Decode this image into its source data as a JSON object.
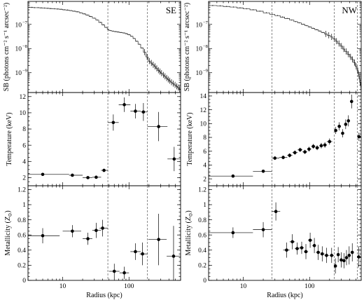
{
  "panels": [
    {
      "id": "SE",
      "label": "SE",
      "ticklabels": {
        "x": [
          "10",
          "100"
        ],
        "sb": [
          "10",
          "10",
          "10"
        ],
        "sb_exp": [
          "−7",
          "−8",
          "−9"
        ],
        "temp": [
          "2",
          "4",
          "6",
          "8",
          "10",
          "12"
        ],
        "metal": [
          "0",
          "0.2",
          "0.4",
          "0.6",
          "0.8",
          "1",
          "1.2"
        ]
      },
      "vlines": [
        48,
        190
      ],
      "sb_profile": [
        [
          3.0,
          5e-07
        ],
        [
          3.3,
          5e-07
        ],
        [
          3.6,
          4.9e-07
        ],
        [
          4.0,
          4.9e-07
        ],
        [
          4.5,
          4.8e-07
        ],
        [
          5.0,
          4.7e-07
        ],
        [
          5.6,
          4.6e-07
        ],
        [
          6.3,
          4.5e-07
        ],
        [
          7.0,
          4.4e-07
        ],
        [
          7.9,
          4.3e-07
        ],
        [
          8.9,
          4.2e-07
        ],
        [
          10,
          4e-07
        ],
        [
          11.2,
          3.9e-07
        ],
        [
          12.6,
          3.7e-07
        ],
        [
          14.1,
          3.5e-07
        ],
        [
          15.8,
          3.3e-07
        ],
        [
          17.8,
          3e-07
        ],
        [
          20,
          2.7e-07
        ],
        [
          22.4,
          2.4e-07
        ],
        [
          25,
          2.1e-07
        ],
        [
          28,
          1.8e-07
        ],
        [
          31.6,
          1.5e-07
        ],
        [
          35,
          1.2e-07
        ],
        [
          39,
          9.5e-08
        ],
        [
          43,
          7.5e-08
        ],
        [
          47,
          6.2e-08
        ],
        [
          50,
          5.5e-08
        ],
        [
          55,
          5.2e-08
        ],
        [
          60,
          5e-08
        ],
        [
          66,
          4.8e-08
        ],
        [
          72,
          4.6e-08
        ],
        [
          80,
          4.4e-08
        ],
        [
          88,
          4.1e-08
        ],
        [
          96,
          3.7e-08
        ],
        [
          105,
          3.2e-08
        ],
        [
          115,
          2.6e-08
        ],
        [
          125,
          2e-08
        ],
        [
          137,
          1.5e-08
        ],
        [
          150,
          1.05e-08
        ],
        [
          165,
          7e-09
        ],
        [
          180,
          4.5e-09
        ],
        [
          195,
          3e-09
        ],
        [
          210,
          2.5e-09
        ],
        [
          225,
          2.1e-09
        ],
        [
          240,
          1.8e-09
        ],
        [
          255,
          1.5e-09
        ],
        [
          270,
          1.25e-09
        ],
        [
          285,
          1.1e-09
        ],
        [
          300,
          9.5e-10
        ],
        [
          320,
          8e-10
        ],
        [
          340,
          7e-10
        ],
        [
          360,
          6e-10
        ],
        [
          380,
          5.2e-10
        ],
        [
          400,
          4.6e-10
        ],
        [
          425,
          4e-10
        ],
        [
          450,
          3.5e-10
        ],
        [
          480,
          3.1e-10
        ],
        [
          510,
          2.7e-10
        ],
        [
          540,
          2.4e-10
        ],
        [
          570,
          2.1e-10
        ]
      ],
      "temperature": [
        {
          "r": 5,
          "xlo": 3.0,
          "xhi": 12.5,
          "t": 2.4,
          "terr": 0.15
        },
        {
          "r": 14,
          "xlo": 12.5,
          "xhi": 20,
          "t": 2.3,
          "terr": 0.15
        },
        {
          "r": 24,
          "xlo": 20,
          "xhi": 28,
          "t": 2.0,
          "terr": 0.15
        },
        {
          "r": 32,
          "xlo": 28,
          "xhi": 38,
          "t": 2.05,
          "terr": 0.15
        },
        {
          "r": 42,
          "xlo": 38,
          "xhi": 48,
          "t": 2.9,
          "terr": 0.2
        },
        {
          "r": 58,
          "xlo": 48,
          "xhi": 70,
          "t": 8.8,
          "terr": 1.0
        },
        {
          "r": 85,
          "xlo": 70,
          "xhi": 105,
          "t": 11.0,
          "terr": 0.9
        },
        {
          "r": 125,
          "xlo": 105,
          "xhi": 150,
          "t": 10.2,
          "terr": 0.9
        },
        {
          "r": 165,
          "xlo": 150,
          "xhi": 190,
          "t": 10.1,
          "terr": 1.1
        },
        {
          "r": 280,
          "xlo": 190,
          "xhi": 380,
          "t": 8.3,
          "terr": 1.8
        },
        {
          "r": 480,
          "xlo": 380,
          "xhi": 600,
          "t": 4.3,
          "terr": 1.5
        }
      ],
      "metallicity": [
        {
          "r": 5,
          "xlo": 3.0,
          "xhi": 9,
          "z": 0.59,
          "zerr": 0.1
        },
        {
          "r": 14,
          "xlo": 10,
          "xhi": 19,
          "z": 0.65,
          "zerr": 0.08
        },
        {
          "r": 24,
          "xlo": 20,
          "xhi": 28,
          "z": 0.55,
          "zerr": 0.08
        },
        {
          "r": 32,
          "xlo": 28,
          "xhi": 38,
          "z": 0.66,
          "zerr": 0.1
        },
        {
          "r": 40,
          "xlo": 36,
          "xhi": 48,
          "z": 0.69,
          "zerr": 0.11
        },
        {
          "r": 60,
          "xlo": 50,
          "xhi": 72,
          "z": 0.12,
          "zerr": 0.1
        },
        {
          "r": 85,
          "xlo": 72,
          "xhi": 100,
          "z": 0.1,
          "zerr": 0.08
        },
        {
          "r": 125,
          "xlo": 105,
          "xhi": 150,
          "z": 0.38,
          "zerr": 0.11
        },
        {
          "r": 160,
          "xlo": 145,
          "xhi": 190,
          "z": 0.35,
          "zerr": 0.15
        },
        {
          "r": 280,
          "xlo": 195,
          "xhi": 370,
          "z": 0.54,
          "zerr": 0.34
        },
        {
          "r": 470,
          "xlo": 370,
          "xhi": 600,
          "z": 0.32,
          "zerr": 0.4
        }
      ]
    },
    {
      "id": "NW",
      "label": "NW",
      "ticklabels": {
        "x": [
          "10",
          "100"
        ],
        "sb": [
          "10",
          "10",
          "10"
        ],
        "sb_exp": [
          "−7",
          "−8",
          "−9"
        ],
        "temp": [
          "2",
          "4",
          "6",
          "8",
          "10",
          "12",
          "14"
        ],
        "metal": [
          "0",
          "0.2",
          "0.4",
          "0.6",
          "0.8",
          "1",
          "1.2"
        ]
      },
      "vlines": [
        27,
        235,
        525
      ],
      "sb_profile": [
        [
          3.0,
          6e-07
        ],
        [
          4.0,
          5.8e-07
        ],
        [
          5.0,
          5.5e-07
        ],
        [
          6.3,
          5.2e-07
        ],
        [
          8.0,
          4.8e-07
        ],
        [
          10,
          4.4e-07
        ],
        [
          12.6,
          4e-07
        ],
        [
          15.8,
          3.5e-07
        ],
        [
          20,
          3e-07
        ],
        [
          25,
          2.6e-07
        ],
        [
          30,
          2.3e-07
        ],
        [
          36,
          2e-07
        ],
        [
          42,
          1.75e-07
        ],
        [
          50,
          1.5e-07
        ],
        [
          58,
          1.3e-07
        ],
        [
          66,
          1.15e-07
        ],
        [
          75,
          1e-07
        ],
        [
          85,
          8.8e-08
        ],
        [
          95,
          7.8e-08
        ],
        [
          107,
          6.8e-08
        ],
        [
          120,
          6e-08
        ],
        [
          135,
          5.3e-08
        ],
        [
          150,
          4.6e-08
        ],
        [
          168,
          4e-08
        ],
        [
          185,
          3.5e-08
        ],
        [
          205,
          3e-08
        ],
        [
          225,
          2.5e-08
        ],
        [
          245,
          2e-08
        ],
        [
          265,
          1.6e-08
        ],
        [
          290,
          1.25e-08
        ],
        [
          315,
          9.5e-09
        ],
        [
          340,
          7.5e-09
        ],
        [
          370,
          5.8e-09
        ],
        [
          400,
          4.5e-09
        ],
        [
          430,
          3.5e-09
        ],
        [
          460,
          2.6e-09
        ],
        [
          490,
          1.8e-09
        ],
        [
          520,
          1.2e-09
        ],
        [
          545,
          7e-10
        ],
        [
          570,
          4e-10
        ],
        [
          590,
          2.5e-10
        ]
      ],
      "temperature": [
        {
          "r": 7,
          "xlo": 3.0,
          "xhi": 14,
          "t": 2.4,
          "terr": 0.12
        },
        {
          "r": 20,
          "xlo": 14,
          "xhi": 27,
          "t": 3.1,
          "terr": 0.15
        },
        {
          "r": 30,
          "xlo": 27,
          "xhi": 35,
          "t": 5.0,
          "terr": 0.25
        },
        {
          "r": 40,
          "xlo": 35,
          "xhi": 46,
          "t": 5.1,
          "terr": 0.25
        },
        {
          "r": 50,
          "xlo": 46,
          "xhi": 55,
          "t": 5.4,
          "terr": 0.3
        },
        {
          "r": 60,
          "xlo": 55,
          "xhi": 66,
          "t": 5.8,
          "terr": 0.3
        },
        {
          "r": 72,
          "xlo": 66,
          "xhi": 78,
          "t": 6.2,
          "terr": 0.3
        },
        {
          "r": 85,
          "xlo": 78,
          "xhi": 92,
          "t": 5.9,
          "terr": 0.3
        },
        {
          "r": 98,
          "xlo": 92,
          "xhi": 106,
          "t": 6.3,
          "terr": 0.35
        },
        {
          "r": 114,
          "xlo": 106,
          "xhi": 122,
          "t": 6.7,
          "terr": 0.35
        },
        {
          "r": 130,
          "xlo": 122,
          "xhi": 140,
          "t": 6.5,
          "terr": 0.35
        },
        {
          "r": 150,
          "xlo": 140,
          "xhi": 160,
          "t": 6.8,
          "terr": 0.4
        },
        {
          "r": 170,
          "xlo": 160,
          "xhi": 182,
          "t": 6.9,
          "terr": 0.4
        },
        {
          "r": 200,
          "xlo": 182,
          "xhi": 220,
          "t": 7.4,
          "terr": 0.45
        },
        {
          "r": 248,
          "xlo": 235,
          "xhi": 262,
          "t": 9.0,
          "terr": 0.5
        },
        {
          "r": 280,
          "xlo": 265,
          "xhi": 295,
          "t": 9.6,
          "terr": 0.6
        },
        {
          "r": 315,
          "xlo": 300,
          "xhi": 330,
          "t": 8.6,
          "terr": 0.6
        },
        {
          "r": 350,
          "xlo": 335,
          "xhi": 365,
          "t": 9.9,
          "terr": 0.7
        },
        {
          "r": 385,
          "xlo": 370,
          "xhi": 400,
          "t": 10.4,
          "terr": 0.8
        },
        {
          "r": 430,
          "xlo": 410,
          "xhi": 450,
          "t": 13.2,
          "terr": 1.0
        },
        {
          "r": 555,
          "xlo": 525,
          "xhi": 600,
          "t": 8.1,
          "terr": 0.6
        }
      ],
      "metallicity": [
        {
          "r": 7,
          "xlo": 3.0,
          "xhi": 14,
          "z": 0.63,
          "zerr": 0.07
        },
        {
          "r": 20,
          "xlo": 14,
          "xhi": 27,
          "z": 0.67,
          "zerr": 0.1
        },
        {
          "r": 31,
          "xlo": 27,
          "xhi": 36,
          "z": 0.91,
          "zerr": 0.12
        },
        {
          "r": 45,
          "xlo": 40,
          "xhi": 50,
          "z": 0.4,
          "zerr": 0.1
        },
        {
          "r": 55,
          "xlo": 50,
          "xhi": 60,
          "z": 0.51,
          "zerr": 0.1
        },
        {
          "r": 65,
          "xlo": 60,
          "xhi": 70,
          "z": 0.42,
          "zerr": 0.08
        },
        {
          "r": 76,
          "xlo": 70,
          "xhi": 82,
          "z": 0.43,
          "zerr": 0.08
        },
        {
          "r": 88,
          "xlo": 82,
          "xhi": 95,
          "z": 0.38,
          "zerr": 0.1
        },
        {
          "r": 102,
          "xlo": 95,
          "xhi": 110,
          "z": 0.53,
          "zerr": 0.1
        },
        {
          "r": 118,
          "xlo": 110,
          "xhi": 125,
          "z": 0.46,
          "zerr": 0.1
        },
        {
          "r": 135,
          "xlo": 125,
          "xhi": 145,
          "z": 0.37,
          "zerr": 0.1
        },
        {
          "r": 155,
          "xlo": 145,
          "xhi": 168,
          "z": 0.35,
          "zerr": 0.1
        },
        {
          "r": 180,
          "xlo": 168,
          "xhi": 195,
          "z": 0.33,
          "zerr": 0.1
        },
        {
          "r": 215,
          "xlo": 200,
          "xhi": 232,
          "z": 0.33,
          "zerr": 0.1
        },
        {
          "r": 245,
          "xlo": 235,
          "xhi": 255,
          "z": 0.19,
          "zerr": 0.1
        },
        {
          "r": 270,
          "xlo": 258,
          "xhi": 282,
          "z": 0.34,
          "zerr": 0.1
        },
        {
          "r": 300,
          "xlo": 285,
          "xhi": 315,
          "z": 0.27,
          "zerr": 0.1
        },
        {
          "r": 330,
          "xlo": 315,
          "xhi": 345,
          "z": 0.26,
          "zerr": 0.1
        },
        {
          "r": 360,
          "xlo": 345,
          "xhi": 375,
          "z": 0.3,
          "zerr": 0.1
        },
        {
          "r": 395,
          "xlo": 375,
          "xhi": 415,
          "z": 0.33,
          "zerr": 0.12
        },
        {
          "r": 440,
          "xlo": 415,
          "xhi": 465,
          "z": 0.37,
          "zerr": 0.12
        },
        {
          "r": 550,
          "xlo": 525,
          "xhi": 600,
          "z": 0.31,
          "zerr": 0.14
        }
      ]
    }
  ],
  "axis_labels": {
    "sb": "SB (photons cm⁻² s⁻¹ arcsec⁻²)",
    "temp": "Temperature (keV)",
    "metal_prefix": "Metallicity (",
    "metal_z": "Z",
    "metal_sub": "⊙",
    "metal_suffix": ")",
    "x": "Radius (kpc)"
  },
  "chart_data": [
    {
      "type": "line",
      "panel": "SE",
      "xlabel": "Radius (kpc)",
      "ylabel": "SB (photons cm⁻² s⁻¹ arcsec⁻²)",
      "xscale": "log",
      "yscale": "log",
      "xlim": [
        3,
        600
      ],
      "ylim": [
        1.5e-10,
        9e-07
      ]
    },
    {
      "type": "scatter",
      "panel": "SE",
      "xlabel": "Radius (kpc)",
      "ylabel": "Temperature (keV)",
      "xscale": "log",
      "xlim": [
        3,
        600
      ],
      "ylim": [
        1,
        12.5
      ]
    },
    {
      "type": "scatter",
      "panel": "SE",
      "xlabel": "Radius (kpc)",
      "ylabel": "Metallicity (Z⊙)",
      "xscale": "log",
      "xlim": [
        3,
        600
      ],
      "ylim": [
        0,
        1.25
      ]
    },
    {
      "type": "line",
      "panel": "NW",
      "xlabel": "Radius (kpc)",
      "ylabel": "SB (photons cm⁻² s⁻¹ arcsec⁻²)",
      "xscale": "log",
      "yscale": "log",
      "xlim": [
        3,
        600
      ],
      "ylim": [
        1.5e-10,
        9e-07
      ]
    },
    {
      "type": "scatter",
      "panel": "NW",
      "xlabel": "Radius (kpc)",
      "ylabel": "Temperature (keV)",
      "xscale": "log",
      "xlim": [
        3,
        600
      ],
      "ylim": [
        1,
        14.5
      ]
    },
    {
      "type": "scatter",
      "panel": "NW",
      "xlabel": "Radius (kpc)",
      "ylabel": "Metallicity (Z⊙)",
      "xscale": "log",
      "xlim": [
        3,
        600
      ],
      "ylim": [
        0,
        1.25
      ]
    }
  ]
}
